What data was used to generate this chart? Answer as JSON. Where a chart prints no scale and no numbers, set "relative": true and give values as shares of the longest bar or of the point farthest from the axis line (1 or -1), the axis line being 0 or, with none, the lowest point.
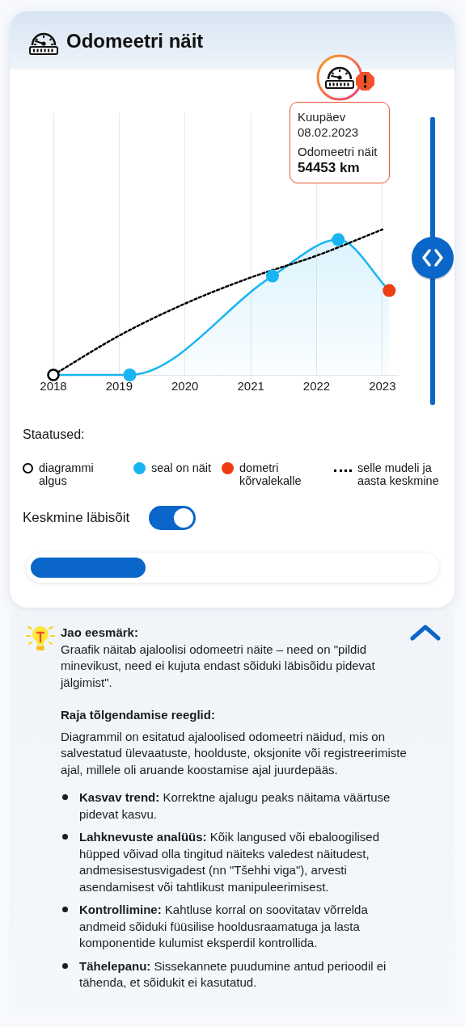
{
  "chart_data": {
    "type": "line",
    "title": "Odomeetri näit",
    "legend_title": "Staatused:",
    "relative": true,
    "xlim": [
      "2018-01",
      "2023-04"
    ],
    "xticks": [
      "2018",
      "2019",
      "2020",
      "2021",
      "2022",
      "2023"
    ],
    "grid": "x",
    "legend": "bottom",
    "tick_labels": "x",
    "series": [
      {
        "type": "area",
        "color": "#19b5f2",
        "marker": "none",
        "x": [
          "2018-01",
          "2019-03",
          "2021-05",
          "2022-05",
          "2023-02-08"
        ],
        "values": [
          0,
          0,
          0.68,
          0.93,
          0.58
        ]
      },
      {
        "type": "line",
        "name": "diagrammi algus",
        "color": "#000000",
        "marker": "circle",
        "x": [
          "2018-01"
        ],
        "values": [
          0
        ]
      },
      {
        "type": "scatter",
        "name": "seal on näit",
        "color": "#19b5f2",
        "marker": "circle",
        "x": [
          "2019-03",
          "2021-05",
          "2022-05"
        ],
        "values": [
          0,
          0.68,
          0.93
        ]
      },
      {
        "type": "scatter",
        "name": "dometri kõrvalekalle",
        "color": "#ee3d12",
        "marker": "circle",
        "x": [
          "2023-02-08"
        ],
        "values": [
          0.58
        ]
      },
      {
        "type": "line",
        "name": "selle mudeli ja aasta keskmine",
        "color": "#000000",
        "marker": "none",
        "line_style": "dotted",
        "x": [
          "2018-01",
          "2019-01",
          "2020-01",
          "2021-01",
          "2022-01",
          "2023-01"
        ],
        "values": [
          0,
          0.27,
          0.49,
          0.67,
          0.82,
          1
        ]
      }
    ],
    "annotations": [
      "Kuupäev",
      "08.02.2023",
      "Odomeetri näit",
      "54453 km",
      "Keskmine läbisõit",
      "Jao eesmärk:",
      "Graafik näitab ajaloolisi odomeetri näite – need on \"pildid minevikust, need ei kujuta endast sõiduki läbisõidu pidevat jälgimist\".",
      "Raja tõlgendamise reeglid:",
      "Diagrammil on esitatud ajaloolised odomeetri näidud, mis on salvestatud ülevaatuste, hoolduste, oksjonite või registreerimiste ajal, millele oli aruande koostamise ajal juurdepääs.",
      "Kasvav trend:",
      "Korrektne ajalugu peaks näitama väärtuse pidevat kasvu.",
      "Lahknevuste analüüs:",
      "Kõik langused või ebaloogilised hüpped võivad olla tingitud näiteks valedest näitudest, andmesisestusvigadest (nn \"Tšehhi viga\"), arvesti asendamisest või tahtlikust manipuleerimisest.",
      "Kontrollimine:",
      "Kahtluse korral on soovitatav võrrelda andmeid sõiduki füüsilise hooldusraamatuga ja lasta komponentide kulumist eksperdil kontrollida.",
      "Tähelepanu:",
      "Sissekannete puudumine antud perioodil ei tähenda, et sõidukit ei kasutatud."
    ]
  }
}
